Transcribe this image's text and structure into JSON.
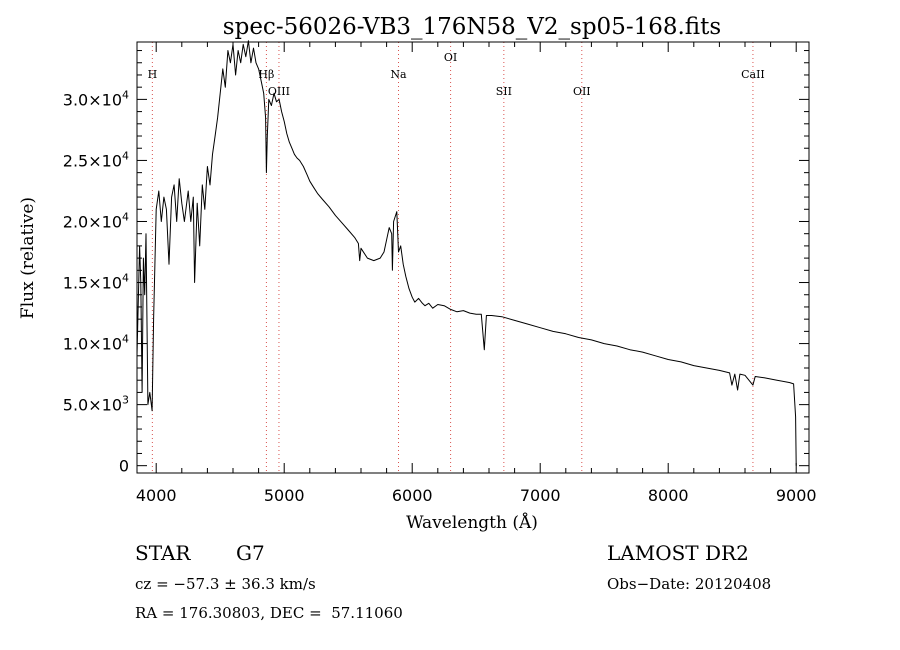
{
  "chart_data": {
    "type": "line",
    "title": "spec-56026-VB3_176N58_V2_sp05-168.fits",
    "xlabel": "Wavelength (Å)",
    "ylabel": "Flux (relative)",
    "xlim": [
      3850,
      9100
    ],
    "ylim": [
      -600,
      34700
    ],
    "x_ticks": [
      4000,
      5000,
      6000,
      7000,
      8000,
      9000
    ],
    "y_ticks": [
      {
        "value": 0,
        "mantissa": "0",
        "exp": ""
      },
      {
        "value": 5000,
        "mantissa": "5.0×10",
        "exp": "3"
      },
      {
        "value": 10000,
        "mantissa": "1.0×10",
        "exp": "4"
      },
      {
        "value": 15000,
        "mantissa": "1.5×10",
        "exp": "4"
      },
      {
        "value": 20000,
        "mantissa": "2.0×10",
        "exp": "4"
      },
      {
        "value": 25000,
        "mantissa": "2.5×10",
        "exp": "4"
      },
      {
        "value": 30000,
        "mantissa": "3.0×10",
        "exp": "4"
      }
    ],
    "grid": false,
    "spectral_lines": [
      {
        "label": "H",
        "wavelength": 3970,
        "level": "low"
      },
      {
        "label": "Hβ",
        "wavelength": 4861,
        "level": "low"
      },
      {
        "label": "OIII",
        "wavelength": 4959,
        "level": "mid"
      },
      {
        "label": "Na",
        "wavelength": 5893,
        "level": "low"
      },
      {
        "label": "OI",
        "wavelength": 6300,
        "level": "high"
      },
      {
        "label": "SII",
        "wavelength": 6716,
        "level": "mid"
      },
      {
        "label": "OII",
        "wavelength": 7325,
        "level": "mid"
      },
      {
        "label": "CaII",
        "wavelength": 8662,
        "level": "low"
      }
    ],
    "series": [
      {
        "values": [
          [
            3850,
            9000
          ],
          [
            3870,
            18000
          ],
          [
            3880,
            15000
          ],
          [
            3890,
            6000
          ],
          [
            3900,
            17000
          ],
          [
            3910,
            14000
          ],
          [
            3920,
            19000
          ],
          [
            3935,
            5000
          ],
          [
            3950,
            6000
          ],
          [
            3968,
            4500
          ],
          [
            3980,
            12000
          ],
          [
            4000,
            21000
          ],
          [
            4020,
            22500
          ],
          [
            4040,
            20000
          ],
          [
            4060,
            22000
          ],
          [
            4080,
            21000
          ],
          [
            4100,
            16500
          ],
          [
            4120,
            22000
          ],
          [
            4140,
            23000
          ],
          [
            4160,
            20000
          ],
          [
            4180,
            23500
          ],
          [
            4200,
            21500
          ],
          [
            4220,
            20000
          ],
          [
            4250,
            22500
          ],
          [
            4270,
            20000
          ],
          [
            4290,
            22000
          ],
          [
            4300,
            15000
          ],
          [
            4320,
            21500
          ],
          [
            4340,
            18000
          ],
          [
            4360,
            23000
          ],
          [
            4380,
            21000
          ],
          [
            4400,
            24500
          ],
          [
            4420,
            23000
          ],
          [
            4440,
            25500
          ],
          [
            4460,
            27000
          ],
          [
            4480,
            28500
          ],
          [
            4500,
            30500
          ],
          [
            4520,
            32500
          ],
          [
            4540,
            31000
          ],
          [
            4560,
            34000
          ],
          [
            4580,
            33000
          ],
          [
            4600,
            34500
          ],
          [
            4620,
            32000
          ],
          [
            4640,
            34000
          ],
          [
            4660,
            33000
          ],
          [
            4680,
            34500
          ],
          [
            4700,
            33500
          ],
          [
            4720,
            34800
          ],
          [
            4740,
            33000
          ],
          [
            4760,
            34200
          ],
          [
            4780,
            33000
          ],
          [
            4800,
            32500
          ],
          [
            4820,
            31500
          ],
          [
            4840,
            30500
          ],
          [
            4855,
            28500
          ],
          [
            4861,
            24000
          ],
          [
            4868,
            27000
          ],
          [
            4880,
            30000
          ],
          [
            4900,
            29500
          ],
          [
            4920,
            30500
          ],
          [
            4940,
            29800
          ],
          [
            4960,
            30000
          ],
          [
            4980,
            29000
          ],
          [
            5000,
            28200
          ],
          [
            5020,
            27200
          ],
          [
            5040,
            26500
          ],
          [
            5060,
            26000
          ],
          [
            5080,
            25500
          ],
          [
            5100,
            25200
          ],
          [
            5120,
            25000
          ],
          [
            5150,
            24500
          ],
          [
            5180,
            23800
          ],
          [
            5200,
            23300
          ],
          [
            5230,
            22800
          ],
          [
            5260,
            22300
          ],
          [
            5300,
            21800
          ],
          [
            5350,
            21200
          ],
          [
            5400,
            20500
          ],
          [
            5450,
            19900
          ],
          [
            5500,
            19300
          ],
          [
            5550,
            18700
          ],
          [
            5580,
            18200
          ],
          [
            5590,
            16800
          ],
          [
            5600,
            17800
          ],
          [
            5650,
            17000
          ],
          [
            5700,
            16800
          ],
          [
            5750,
            17000
          ],
          [
            5780,
            17500
          ],
          [
            5800,
            18500
          ],
          [
            5820,
            19500
          ],
          [
            5840,
            19000
          ],
          [
            5845,
            16000
          ],
          [
            5855,
            20000
          ],
          [
            5870,
            20500
          ],
          [
            5880,
            20800
          ],
          [
            5893,
            17500
          ],
          [
            5910,
            18000
          ],
          [
            5930,
            16500
          ],
          [
            5950,
            15500
          ],
          [
            5975,
            14500
          ],
          [
            6000,
            13800
          ],
          [
            6020,
            13400
          ],
          [
            6050,
            13700
          ],
          [
            6080,
            13300
          ],
          [
            6100,
            13100
          ],
          [
            6130,
            13300
          ],
          [
            6160,
            12900
          ],
          [
            6200,
            13200
          ],
          [
            6250,
            13100
          ],
          [
            6300,
            12800
          ],
          [
            6350,
            12600
          ],
          [
            6400,
            12700
          ],
          [
            6450,
            12500
          ],
          [
            6500,
            12400
          ],
          [
            6540,
            12400
          ],
          [
            6563,
            9500
          ],
          [
            6580,
            12300
          ],
          [
            6620,
            12300
          ],
          [
            6700,
            12200
          ],
          [
            6800,
            11900
          ],
          [
            6900,
            11600
          ],
          [
            7000,
            11300
          ],
          [
            7100,
            11000
          ],
          [
            7200,
            10800
          ],
          [
            7300,
            10500
          ],
          [
            7400,
            10300
          ],
          [
            7500,
            10000
          ],
          [
            7600,
            9800
          ],
          [
            7700,
            9500
          ],
          [
            7800,
            9300
          ],
          [
            7900,
            9000
          ],
          [
            8000,
            8700
          ],
          [
            8100,
            8500
          ],
          [
            8200,
            8200
          ],
          [
            8300,
            8000
          ],
          [
            8400,
            7800
          ],
          [
            8480,
            7600
          ],
          [
            8498,
            6600
          ],
          [
            8520,
            7500
          ],
          [
            8542,
            6200
          ],
          [
            8560,
            7500
          ],
          [
            8600,
            7400
          ],
          [
            8662,
            6600
          ],
          [
            8680,
            7300
          ],
          [
            8750,
            7200
          ],
          [
            8850,
            7000
          ],
          [
            8950,
            6800
          ],
          [
            8980,
            6700
          ],
          [
            8995,
            4000
          ],
          [
            9000,
            0
          ]
        ]
      }
    ]
  },
  "info": {
    "object_type": "STAR",
    "subclass": "G7",
    "cz": "cz = −57.3 ± 36.3 km/s",
    "coords": "RA = 176.30803, DEC =  57.11060",
    "survey": "LAMOST DR2",
    "obs_date": "Obs−Date: 20120408"
  },
  "colors": {
    "line_marker": "#d9534f",
    "spectrum": "#000000"
  }
}
